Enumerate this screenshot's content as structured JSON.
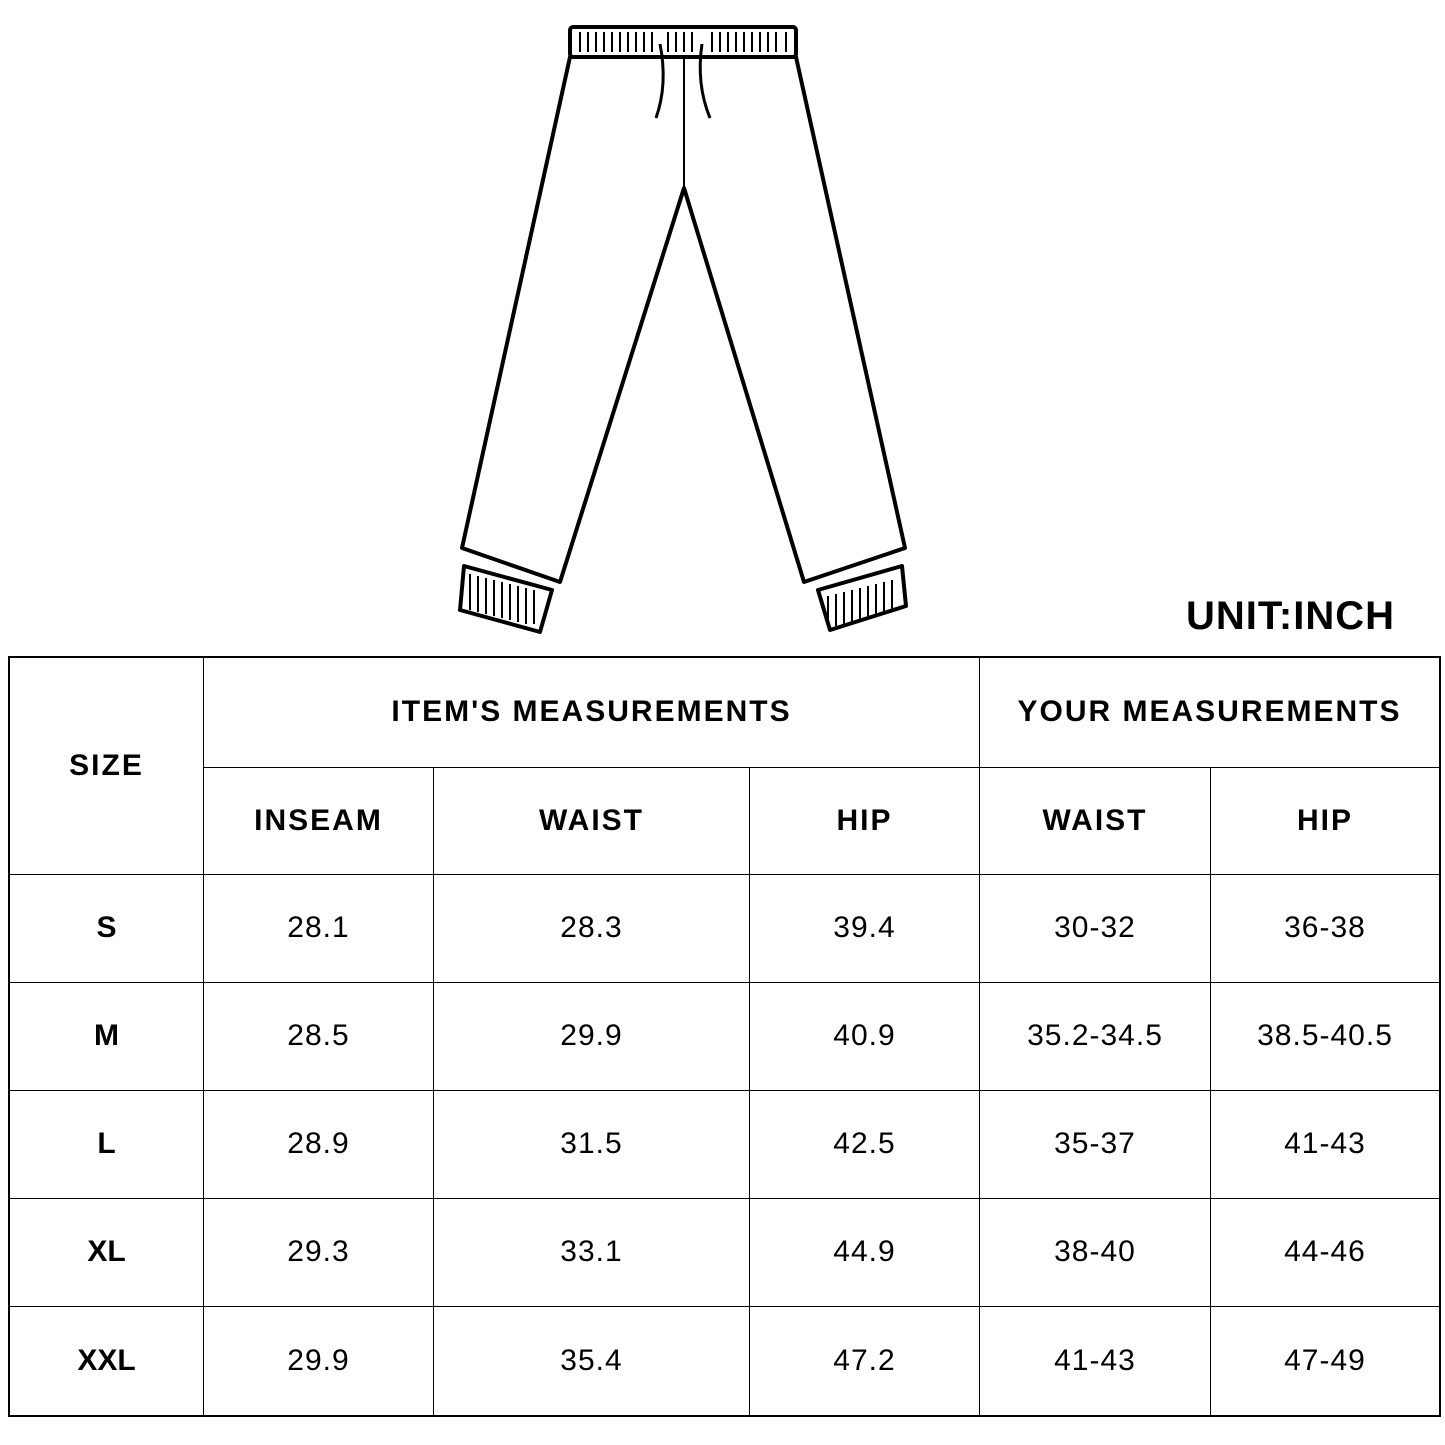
{
  "illustration": "jogger-pants-line-drawing",
  "unit_label": "UNIT:INCH",
  "table": {
    "size_header": "SIZE",
    "group_item": "ITEM'S MEASUREMENTS",
    "group_your": "YOUR MEASUREMENTS",
    "columns": [
      "INSEAM",
      "WAIST",
      "HIP",
      "WAIST",
      "HIP"
    ],
    "rows": [
      {
        "size": "S",
        "values": [
          "28.1",
          "28.3",
          "39.4",
          "30-32",
          "36-38"
        ]
      },
      {
        "size": "M",
        "values": [
          "28.5",
          "29.9",
          "40.9",
          "35.2-34.5",
          "38.5-40.5"
        ]
      },
      {
        "size": "L",
        "values": [
          "28.9",
          "31.5",
          "42.5",
          "35-37",
          "41-43"
        ]
      },
      {
        "size": "XL",
        "values": [
          "29.3",
          "33.1",
          "44.9",
          "38-40",
          "44-46"
        ]
      },
      {
        "size": "XXL",
        "values": [
          "29.9",
          "35.4",
          "47.2",
          "41-43",
          "47-49"
        ]
      }
    ]
  }
}
